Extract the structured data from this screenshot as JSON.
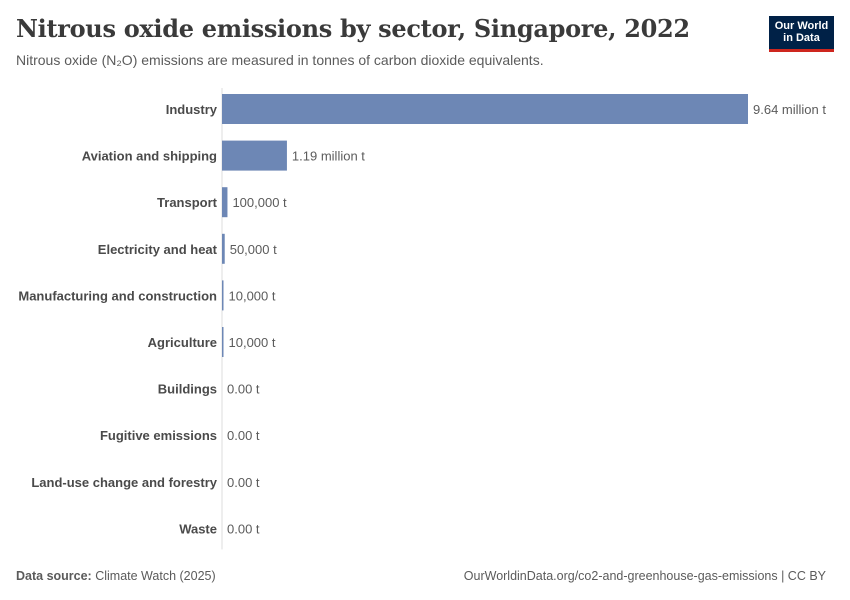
{
  "header": {
    "title": "Nitrous oxide emissions by sector, Singapore, 2022",
    "subtitle": "Nitrous oxide (N₂O) emissions are measured in tonnes of carbon dioxide equivalents.",
    "logo_line1": "Our World",
    "logo_line2": "in Data"
  },
  "footer": {
    "source_label": "Data source:",
    "source_value": "Climate Watch (2025)",
    "url": "OurWorldinData.org/co2-and-greenhouse-gas-emissions | CC BY"
  },
  "colors": {
    "bar": "#6d87b5",
    "logo_bg": "#002147",
    "logo_accent": "#ce261e"
  },
  "chart_data": {
    "type": "bar",
    "orientation": "horizontal",
    "title": "Nitrous oxide emissions by sector, Singapore, 2022",
    "unit": "tonnes of CO₂ equivalents",
    "categories": [
      "Industry",
      "Aviation and shipping",
      "Transport",
      "Electricity and heat",
      "Manufacturing and construction",
      "Agriculture",
      "Buildings",
      "Fugitive emissions",
      "Land-use change and forestry",
      "Waste"
    ],
    "values": [
      9640000,
      1190000,
      100000,
      50000,
      10000,
      10000,
      0,
      0,
      0,
      0
    ],
    "value_labels": [
      "9.64 million t",
      "1.19 million t",
      "100,000 t",
      "50,000 t",
      "10,000 t",
      "10,000 t",
      "0.00 t",
      "0.00 t",
      "0.00 t",
      "0.00 t"
    ],
    "xlim": [
      0,
      9640000
    ]
  }
}
